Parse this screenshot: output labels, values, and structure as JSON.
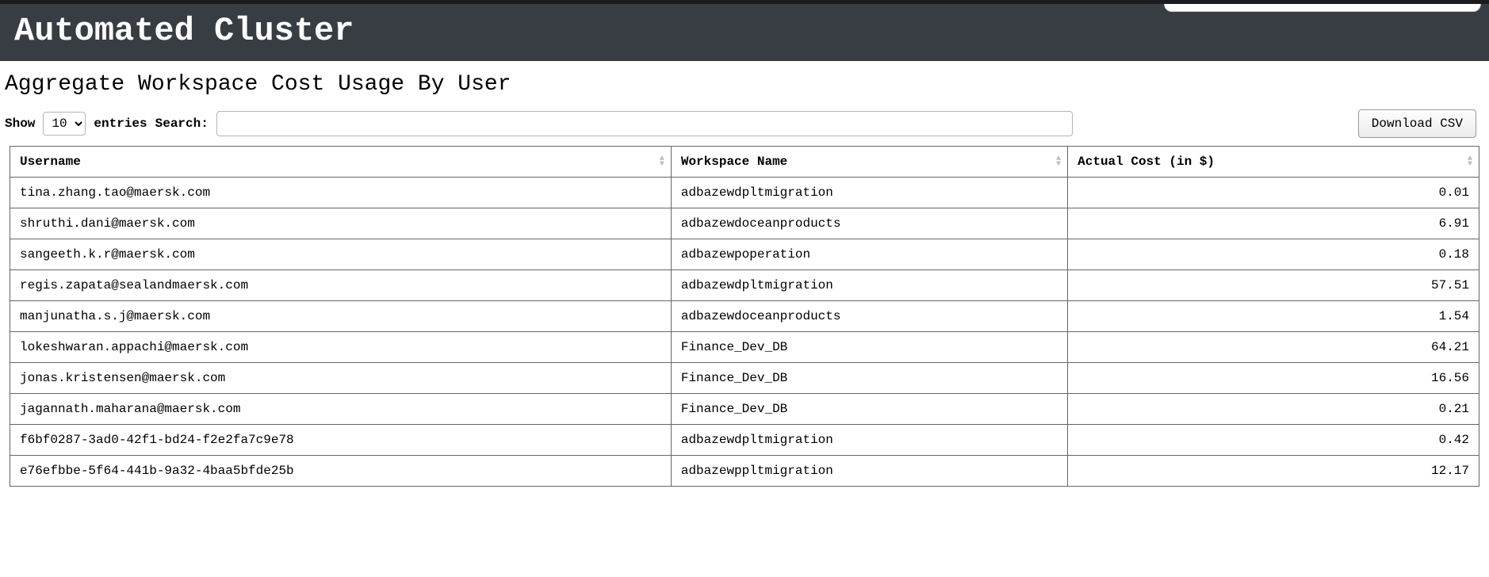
{
  "header": {
    "title": "Automated Cluster"
  },
  "subtitle": "Aggregate Workspace Cost Usage By User",
  "controls": {
    "show_label": "Show",
    "entries_label": "entries",
    "entries_value": "10",
    "search_label": "Search:",
    "search_value": "",
    "download_label": "Download CSV"
  },
  "table": {
    "columns": [
      {
        "key": "username",
        "label": "Username",
        "align": "left"
      },
      {
        "key": "workspace",
        "label": "Workspace Name",
        "align": "left"
      },
      {
        "key": "cost",
        "label": "Actual Cost (in $)",
        "align": "right"
      }
    ],
    "rows": [
      {
        "username": "tina.zhang.tao@maersk.com",
        "workspace": "adbazewdpltmigration",
        "cost": "0.01"
      },
      {
        "username": "shruthi.dani@maersk.com",
        "workspace": "adbazewdoceanproducts",
        "cost": "6.91"
      },
      {
        "username": "sangeeth.k.r@maersk.com",
        "workspace": "adbazewpoperation",
        "cost": "0.18"
      },
      {
        "username": "regis.zapata@sealandmaersk.com",
        "workspace": "adbazewdpltmigration",
        "cost": "57.51"
      },
      {
        "username": "manjunatha.s.j@maersk.com",
        "workspace": "adbazewdoceanproducts",
        "cost": "1.54"
      },
      {
        "username": "lokeshwaran.appachi@maersk.com",
        "workspace": "Finance_Dev_DB",
        "cost": "64.21"
      },
      {
        "username": "jonas.kristensen@maersk.com",
        "workspace": "Finance_Dev_DB",
        "cost": "16.56"
      },
      {
        "username": "jagannath.maharana@maersk.com",
        "workspace": "Finance_Dev_DB",
        "cost": "0.21"
      },
      {
        "username": "f6bf0287-3ad0-42f1-bd24-f2e2fa7c9e78",
        "workspace": "adbazewdpltmigration",
        "cost": "0.42"
      },
      {
        "username": "e76efbbe-5f64-441b-9a32-4baa5bfde25b",
        "workspace": "adbazewppltmigration",
        "cost": "12.17"
      }
    ]
  },
  "colors": {
    "header_bg": "#383d44",
    "header_border_top": "#1a1c1f",
    "header_text": "#ffffff",
    "cell_border": "#666666",
    "arrow_inactive": "#bcbcbc"
  }
}
